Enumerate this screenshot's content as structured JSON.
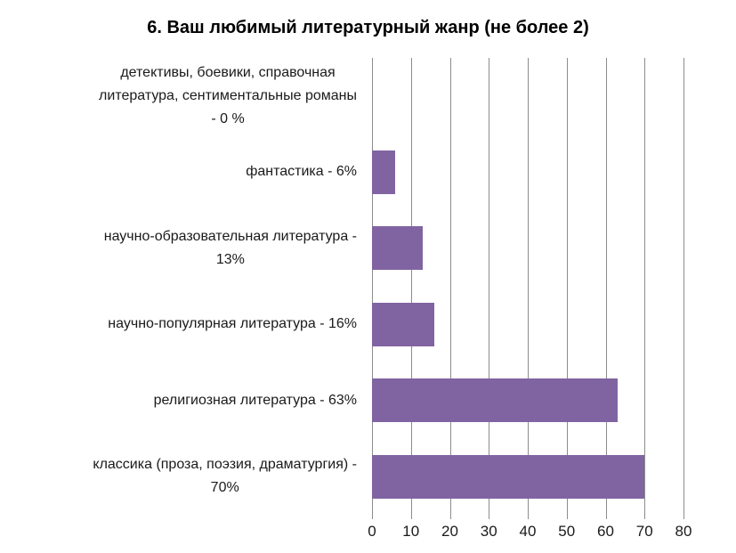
{
  "chart_data": {
    "type": "bar",
    "orientation": "horizontal",
    "title": "6. Ваш любимый литературный жанр (не более 2)",
    "categories": [
      "детективы, боевики, справочная литература, сентиментальные романы - 0 %",
      "фантастика - 6%",
      "научно-образовательная литература - 13%",
      "научно-популярная литература - 16%",
      "религиозная литература - 63%",
      "классика (проза, поэзия, драматургия) - 70%"
    ],
    "values": [
      0,
      6,
      13,
      16,
      63,
      70
    ],
    "label_lines": [
      [
        "детективы, боевики, справочная",
        "литература, сентиментальные романы",
        "- 0 %"
      ],
      [
        "фантастика - 6%"
      ],
      [
        "научно-образовательная литература -",
        "13%"
      ],
      [
        "научно-популярная литература - 16%"
      ],
      [
        "религиозная литература - 63%"
      ],
      [
        "классика (проза, поэзия, драматургия) -",
        "70%"
      ]
    ],
    "xlabel": "",
    "ylabel": "",
    "xlim": [
      0,
      80
    ],
    "xticks": [
      0,
      10,
      20,
      30,
      40,
      50,
      60,
      70,
      80
    ],
    "grid": true,
    "legend": false,
    "colors": {
      "bar": "#8064A2",
      "gridline": "#8C8C8C",
      "title_text": "#000000",
      "label_text": "#1A1A1A",
      "background": "#FFFFFF"
    }
  }
}
